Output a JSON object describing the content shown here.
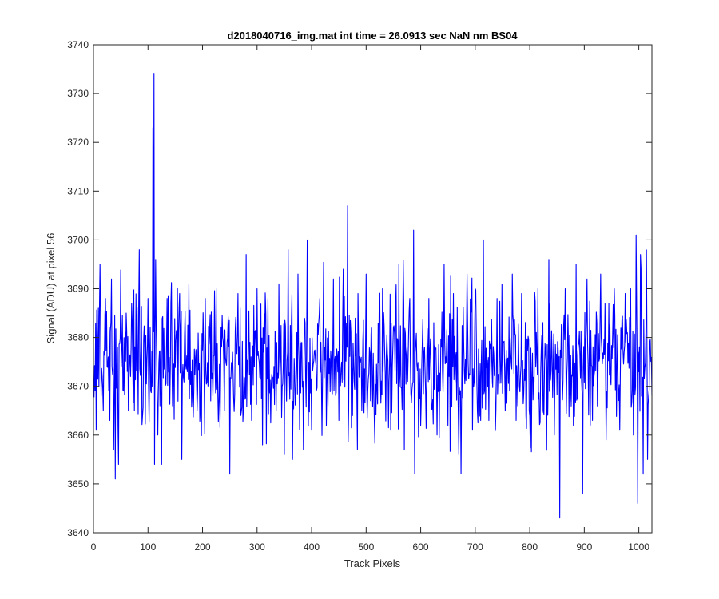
{
  "chart_data": {
    "type": "line",
    "title": "d2018040716_img.mat int time = 26.0913 sec  NaN nm BS04",
    "xlabel": "Track Pixels",
    "ylabel": "Signal (ADU) at pixel 56",
    "xlim": [
      0,
      1024
    ],
    "ylim": [
      3640,
      3740
    ],
    "xticks": [
      0,
      100,
      200,
      300,
      400,
      500,
      600,
      700,
      800,
      900,
      1000
    ],
    "yticks": [
      3640,
      3650,
      3660,
      3670,
      3680,
      3690,
      3700,
      3710,
      3720,
      3730,
      3740
    ],
    "grid": false,
    "legend": "none",
    "series": [
      {
        "color": "#0000ff",
        "noise_center": 3675,
        "noise_std": 7,
        "seed": 56,
        "n_points": 1024,
        "x_start": 1,
        "points": [
          [
            5,
            3661
          ],
          [
            9,
            3686
          ],
          [
            12,
            3695
          ],
          [
            18,
            3665
          ],
          [
            22,
            3688
          ],
          [
            30,
            3663
          ],
          [
            33,
            3692
          ],
          [
            37,
            3657
          ],
          [
            40,
            3651
          ],
          [
            46,
            3654
          ],
          [
            60,
            3685
          ],
          [
            75,
            3665
          ],
          [
            84,
            3698
          ],
          [
            90,
            3664
          ],
          [
            100,
            3688
          ],
          [
            105,
            3669
          ],
          [
            109,
            3723
          ],
          [
            111,
            3734
          ],
          [
            112,
            3654
          ],
          [
            114,
            3696
          ],
          [
            118,
            3660
          ],
          [
            125,
            3654
          ],
          [
            135,
            3688
          ],
          [
            145,
            3666
          ],
          [
            158,
            3689
          ],
          [
            162,
            3655
          ],
          [
            175,
            3691
          ],
          [
            190,
            3665
          ],
          [
            205,
            3688
          ],
          [
            215,
            3667
          ],
          [
            225,
            3690
          ],
          [
            240,
            3665
          ],
          [
            250,
            3652
          ],
          [
            265,
            3689
          ],
          [
            270,
            3664
          ],
          [
            280,
            3697
          ],
          [
            290,
            3663
          ],
          [
            300,
            3690
          ],
          [
            310,
            3658
          ],
          [
            320,
            3688
          ],
          [
            335,
            3665
          ],
          [
            340,
            3691
          ],
          [
            350,
            3656
          ],
          [
            357,
            3698
          ],
          [
            365,
            3655
          ],
          [
            375,
            3693
          ],
          [
            385,
            3657
          ],
          [
            392,
            3700
          ],
          [
            400,
            3661
          ],
          [
            415,
            3688
          ],
          [
            430,
            3666
          ],
          [
            440,
            3692
          ],
          [
            450,
            3663
          ],
          [
            458,
            3694
          ],
          [
            466,
            3707
          ],
          [
            475,
            3664
          ],
          [
            485,
            3689
          ],
          [
            492,
            3665
          ],
          [
            500,
            3693
          ],
          [
            515,
            3663
          ],
          [
            530,
            3690
          ],
          [
            545,
            3661
          ],
          [
            560,
            3695
          ],
          [
            570,
            3657
          ],
          [
            580,
            3688
          ],
          [
            587,
            3702
          ],
          [
            600,
            3662
          ],
          [
            615,
            3688
          ],
          [
            630,
            3660
          ],
          [
            643,
            3695
          ],
          [
            650,
            3662
          ],
          [
            660,
            3689
          ],
          [
            670,
            3656
          ],
          [
            685,
            3693
          ],
          [
            695,
            3661
          ],
          [
            700,
            3690
          ],
          [
            710,
            3663
          ],
          [
            715,
            3700
          ],
          [
            725,
            3663
          ],
          [
            740,
            3688
          ],
          [
            755,
            3665
          ],
          [
            768,
            3693
          ],
          [
            775,
            3663
          ],
          [
            785,
            3689
          ],
          [
            800,
            3664
          ],
          [
            815,
            3690
          ],
          [
            825,
            3665
          ],
          [
            835,
            3696
          ],
          [
            845,
            3660
          ],
          [
            855,
            3643
          ],
          [
            865,
            3690
          ],
          [
            880,
            3662
          ],
          [
            885,
            3695
          ],
          [
            897,
            3648
          ],
          [
            905,
            3692
          ],
          [
            915,
            3663
          ],
          [
            930,
            3693
          ],
          [
            940,
            3659
          ],
          [
            955,
            3690
          ],
          [
            965,
            3661
          ],
          [
            975,
            3689
          ],
          [
            985,
            3690
          ],
          [
            990,
            3660
          ],
          [
            995,
            3701
          ],
          [
            998,
            3646
          ],
          [
            1003,
            3697
          ],
          [
            1008,
            3652
          ],
          [
            1013,
            3681
          ],
          [
            1016,
            3655
          ],
          [
            1020,
            3679
          ]
        ]
      }
    ]
  }
}
